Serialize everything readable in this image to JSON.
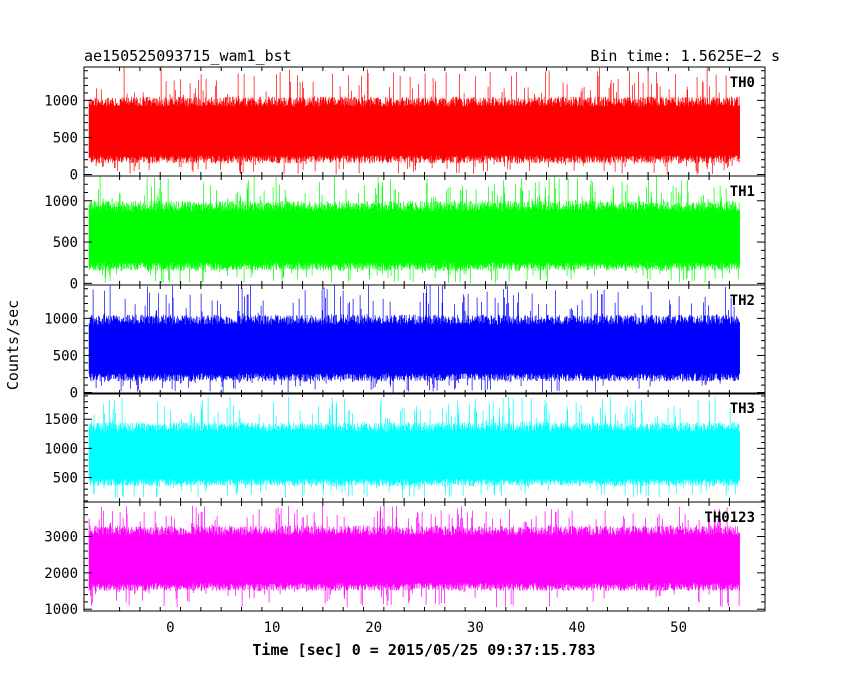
{
  "header": {
    "title": "ae150525093715_wam1_bst",
    "bin_time": "Bin time: 1.5625E−2 s"
  },
  "chart_data": {
    "type": "line",
    "title": "ae150525093715_wam1_bst",
    "xlabel": "Time [sec] 0 = 2015/05/25 09:37:15.783",
    "ylabel": "Counts/sec",
    "xlim": [
      -8.5,
      58.5
    ],
    "x_ticks": [
      "0",
      "10",
      "20",
      "30",
      "40",
      "50"
    ],
    "x_tick_values": [
      0,
      10,
      20,
      30,
      40,
      50
    ],
    "data_x_range": [
      -8,
      56
    ],
    "grid": false,
    "panels": [
      {
        "name": "TH0",
        "color": "#ff0000",
        "ylim": [
          -20,
          1450
        ],
        "yticks": [
          0,
          500,
          1000
        ],
        "y_tick_labels": [
          "0",
          "500",
          "1000"
        ],
        "typical_range": [
          150,
          1050
        ],
        "spike_min": 0,
        "spike_max": 1450
      },
      {
        "name": "TH1",
        "color": "#00ff00",
        "ylim": [
          -20,
          1300
        ],
        "yticks": [
          0,
          500,
          1000
        ],
        "y_tick_labels": [
          "0",
          "500",
          "1000"
        ],
        "typical_range": [
          150,
          1000
        ],
        "spike_min": 0,
        "spike_max": 1300
      },
      {
        "name": "TH2",
        "color": "#0000ff",
        "ylim": [
          -20,
          1450
        ],
        "yticks": [
          0,
          500,
          1000
        ],
        "y_tick_labels": [
          "0",
          "500",
          "1000"
        ],
        "typical_range": [
          150,
          1050
        ],
        "spike_min": 0,
        "spike_max": 1450
      },
      {
        "name": "TH3",
        "color": "#00ffff",
        "ylim": [
          80,
          1950
        ],
        "yticks": [
          500,
          1000,
          1500
        ],
        "y_tick_labels": [
          "500",
          "1000",
          "1500"
        ],
        "typical_range": [
          350,
          1450
        ],
        "spike_min": 150,
        "spike_max": 1900
      },
      {
        "name": "TH0123",
        "color": "#ff00ff",
        "ylim": [
          950,
          3950
        ],
        "yticks": [
          1000,
          2000,
          3000
        ],
        "y_tick_labels": [
          "1000",
          "2000",
          "3000"
        ],
        "typical_range": [
          1500,
          3300
        ],
        "spike_min": 1050,
        "spike_max": 3850
      }
    ]
  }
}
